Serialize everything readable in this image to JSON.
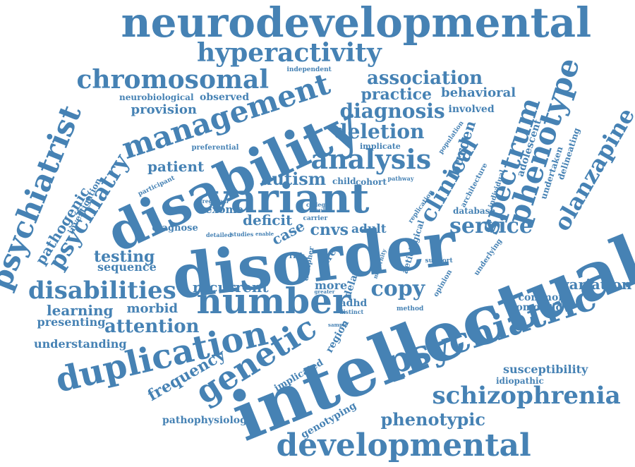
{
  "words": [
    {
      "text": "neurodevelopmental"
    },
    {
      "text": "hyperactivity"
    },
    {
      "text": "chromosomal"
    },
    {
      "text": "association"
    },
    {
      "text": "practice"
    },
    {
      "text": "behavioral"
    },
    {
      "text": "phenotype"
    },
    {
      "text": "independent"
    },
    {
      "text": "neurobiological"
    },
    {
      "text": "observed"
    },
    {
      "text": "management"
    },
    {
      "text": "provision"
    },
    {
      "text": "diagnosis"
    },
    {
      "text": "involved"
    },
    {
      "text": "psychiatrist"
    },
    {
      "text": "disability"
    },
    {
      "text": "deletion"
    },
    {
      "text": "implicate"
    },
    {
      "text": "burden"
    },
    {
      "text": "population"
    },
    {
      "text": "preferential"
    },
    {
      "text": "analysis"
    },
    {
      "text": "spectrum"
    },
    {
      "text": "adolescent"
    },
    {
      "text": "delineating"
    },
    {
      "text": "olanzapine"
    },
    {
      "text": "patient"
    },
    {
      "text": "clinical"
    },
    {
      "text": "undertaken"
    },
    {
      "text": "investigation"
    },
    {
      "text": "participant"
    },
    {
      "text": "autism"
    },
    {
      "text": "child"
    },
    {
      "text": "cohort"
    },
    {
      "text": "pathway"
    },
    {
      "text": "architecture"
    },
    {
      "text": "individual"
    },
    {
      "text": "psychiatry"
    },
    {
      "text": "pathogenic"
    },
    {
      "text": "variant"
    },
    {
      "text": "regional"
    },
    {
      "text": "college"
    },
    {
      "text": "replication"
    },
    {
      "text": "exome"
    },
    {
      "text": "result"
    },
    {
      "text": "database"
    },
    {
      "text": "service"
    },
    {
      "text": "psychiatric"
    },
    {
      "text": "deficit"
    },
    {
      "text": "carrier"
    },
    {
      "text": "diagnose"
    },
    {
      "text": "case"
    },
    {
      "text": "cnvs"
    },
    {
      "text": "adult"
    },
    {
      "text": "detailed"
    },
    {
      "text": "studies"
    },
    {
      "text": "enable"
    },
    {
      "text": "disorder"
    },
    {
      "text": "aetiological"
    },
    {
      "text": "underlying"
    },
    {
      "text": "intellectual"
    },
    {
      "text": "testing"
    },
    {
      "text": "sequence"
    },
    {
      "text": "decipher"
    },
    {
      "text": "risk"
    },
    {
      "text": "rare"
    },
    {
      "text": "maternity"
    },
    {
      "text": "support"
    },
    {
      "text": "disabilities"
    },
    {
      "text": "recurrent"
    },
    {
      "text": "more"
    },
    {
      "text": "delay"
    },
    {
      "text": "copy"
    },
    {
      "text": "opinion"
    },
    {
      "text": "variation"
    },
    {
      "text": "number"
    },
    {
      "text": "greater"
    },
    {
      "text": "common"
    },
    {
      "text": "learning"
    },
    {
      "text": "morbid"
    },
    {
      "text": "adhd"
    },
    {
      "text": "distinct"
    },
    {
      "text": "method"
    },
    {
      "text": "comorbid"
    },
    {
      "text": "presenting"
    },
    {
      "text": "attention"
    },
    {
      "text": "sample"
    },
    {
      "text": "region"
    },
    {
      "text": "understanding"
    },
    {
      "text": "duplication"
    },
    {
      "text": "genetic"
    },
    {
      "text": "frequency"
    },
    {
      "text": "implicated"
    },
    {
      "text": "susceptibility"
    },
    {
      "text": "idiopathic"
    },
    {
      "text": "schizophrenia"
    },
    {
      "text": "genotyping"
    },
    {
      "text": "phenotypic"
    },
    {
      "text": "pathophysiology"
    },
    {
      "text": "developmental"
    }
  ]
}
